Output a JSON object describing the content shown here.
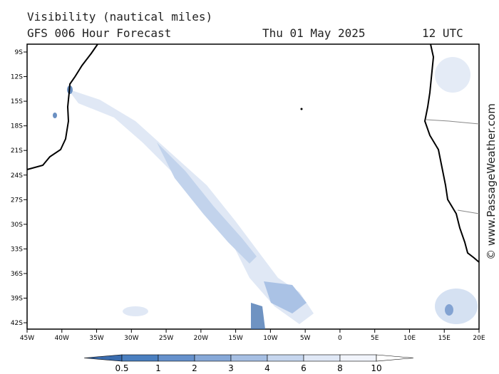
{
  "header": {
    "title": "Visibility (nautical miles)",
    "subtitle": "GFS 006 Hour Forecast",
    "date": "Thu 01 May 2025",
    "time": "12 UTC"
  },
  "map": {
    "lat_labels": [
      "9S",
      "12S",
      "15S",
      "18S",
      "21S",
      "24S",
      "27S",
      "30S",
      "33S",
      "36S",
      "39S",
      "42S"
    ],
    "lon_labels": [
      "45W",
      "40W",
      "35W",
      "30W",
      "25W",
      "20W",
      "15W",
      "10W",
      "5W",
      "0",
      "5E",
      "10E",
      "15E",
      "20E"
    ]
  },
  "colorbar": {
    "labels": [
      0.5,
      1,
      2,
      3,
      4,
      6,
      8,
      10
    ],
    "colors": [
      "#3a6cae",
      "#4a7fc0",
      "#6591cc",
      "#86a8d8",
      "#a6bfe3",
      "#c6d6ee",
      "#e0e8f6",
      "#f1f4fb",
      "#ffffff"
    ]
  },
  "credit": "© www.PassageWeather.com"
}
